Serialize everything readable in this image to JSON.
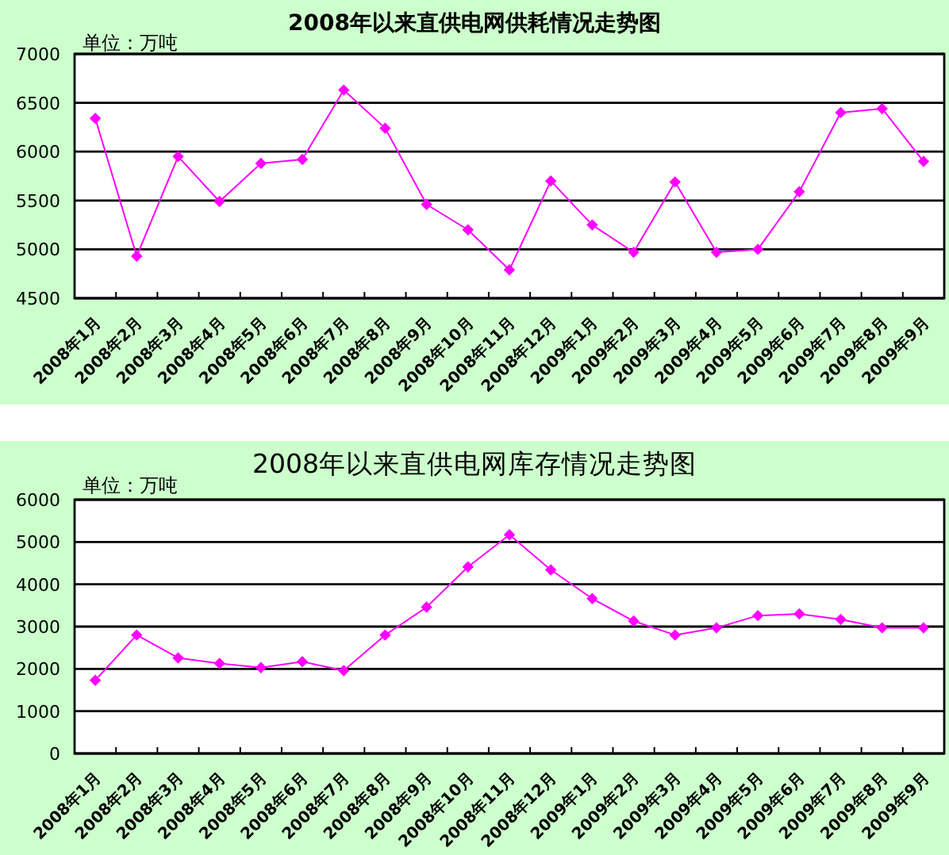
{
  "chart_data": [
    {
      "type": "line",
      "title": "2008年以来直供电网供耗情况走势图",
      "annotations": [
        "单位：万吨"
      ],
      "categories": [
        "2008年1月",
        "2008年2月",
        "2008年3月",
        "2008年4月",
        "2008年5月",
        "2008年6月",
        "2008年7月",
        "2008年8月",
        "2008年9月",
        "2008年10月",
        "2008年11月",
        "2008年12月",
        "2009年1月",
        "2009年2月",
        "2009年3月",
        "2009年4月",
        "2009年5月",
        "2009年6月",
        "2009年7月",
        "2009年8月",
        "2009年9月"
      ],
      "series": [
        {
          "color": "#ff00ff",
          "values": [
            6340,
            4930,
            5950,
            5490,
            5880,
            5920,
            6630,
            6240,
            5460,
            5200,
            4790,
            5700,
            5250,
            4970,
            5690,
            4970,
            5000,
            5590,
            6400,
            6440,
            5900
          ]
        }
      ],
      "ylim": [
        4500,
        7000
      ],
      "yticks": [
        4500,
        5000,
        5500,
        6000,
        6500,
        7000
      ],
      "grid": "y",
      "marker": "diamond"
    },
    {
      "type": "line",
      "title": "2008年以来直供电网库存情况走势图",
      "annotations": [
        "单位：万吨"
      ],
      "categories": [
        "2008年1月",
        "2008年2月",
        "2008年3月",
        "2008年4月",
        "2008年5月",
        "2008年6月",
        "2008年7月",
        "2008年8月",
        "2008年9月",
        "2008年10月",
        "2008年11月",
        "2008年12月",
        "2009年1月",
        "2009年2月",
        "2009年3月",
        "2009年4月",
        "2009年5月",
        "2009年6月",
        "2009年7月",
        "2009年8月",
        "2009年9月"
      ],
      "series": [
        {
          "color": "#ff00ff",
          "values": [
            1730,
            2800,
            2260,
            2130,
            2030,
            2170,
            1960,
            2800,
            3460,
            4410,
            5170,
            4340,
            3660,
            3130,
            2800,
            2970,
            3260,
            3300,
            3170,
            2970,
            2970
          ]
        }
      ],
      "ylim": [
        0,
        6000
      ],
      "yticks": [
        0,
        1000,
        2000,
        3000,
        4000,
        5000,
        6000
      ],
      "grid": "y",
      "marker": "diamond"
    }
  ]
}
